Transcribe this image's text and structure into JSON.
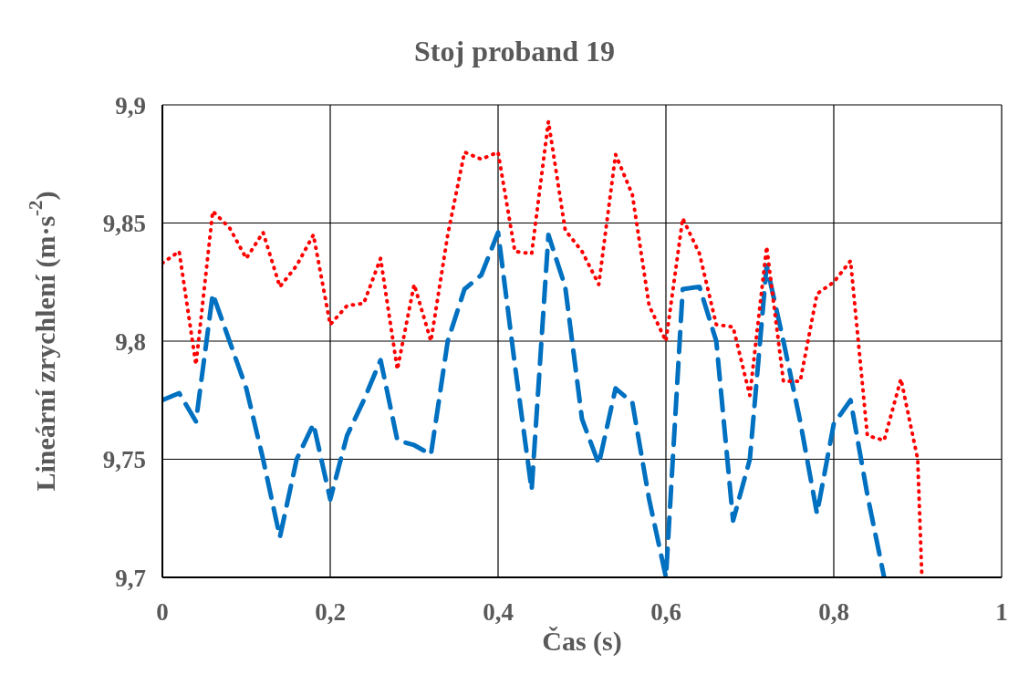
{
  "chart_data": {
    "type": "line",
    "title": "Stoj proband 19",
    "xlabel": "Čas (s)",
    "ylabel": "Lineární zrychlení (m·s$^{-2}$)",
    "xlim": [
      0,
      1
    ],
    "ylim": [
      9.7,
      9.9
    ],
    "xticks": [
      0,
      {
        "value": 0.2,
        "label": "0,2"
      },
      {
        "value": 0.4,
        "label": "0,4"
      },
      {
        "value": 0.6,
        "label": "0,6"
      },
      {
        "value": 0.8,
        "label": "0,8"
      },
      1
    ],
    "yticks": [
      {
        "value": 9.7,
        "label": "9,7"
      },
      {
        "value": 9.75,
        "label": "9,75"
      },
      {
        "value": 9.8,
        "label": "9,8"
      },
      {
        "value": 9.85,
        "label": "9,85"
      },
      {
        "value": 9.9,
        "label": "9,9"
      }
    ],
    "grid": true,
    "legend": false,
    "marker": "none",
    "series": [
      {
        "color": "#0070c0",
        "line_style": "dashed",
        "x": [
          0,
          0.02,
          0.04,
          0.06,
          0.08,
          0.1,
          0.12,
          0.14,
          0.16,
          0.18,
          0.2,
          0.22,
          0.24,
          0.26,
          0.28,
          0.3,
          0.32,
          0.34,
          0.36,
          0.38,
          0.4,
          0.42,
          0.44,
          0.46,
          0.48,
          0.5,
          0.52,
          0.54,
          0.56,
          0.58,
          0.6,
          0.62,
          0.64,
          0.66,
          0.68,
          0.7,
          0.72,
          0.74,
          0.76,
          0.78,
          0.8,
          0.82,
          0.84,
          0.86
        ],
        "values": [
          9.775,
          9.778,
          9.766,
          9.82,
          9.8,
          9.78,
          9.75,
          9.717,
          9.75,
          9.765,
          9.733,
          9.76,
          9.775,
          9.792,
          9.758,
          9.756,
          9.752,
          9.8,
          9.822,
          9.828,
          9.846,
          9.79,
          9.737,
          9.845,
          9.823,
          9.767,
          9.748,
          9.78,
          9.774,
          9.733,
          9.7,
          9.822,
          9.823,
          9.8,
          9.724,
          9.75,
          9.832,
          9.8,
          9.766,
          9.727,
          9.765,
          9.775,
          9.735,
          9.7
        ]
      },
      {
        "color": "#ff0000",
        "line_style": "dotted",
        "x": [
          0,
          0.02,
          0.04,
          0.06,
          0.08,
          0.1,
          0.12,
          0.14,
          0.16,
          0.18,
          0.2,
          0.22,
          0.24,
          0.26,
          0.28,
          0.3,
          0.32,
          0.34,
          0.36,
          0.38,
          0.4,
          0.42,
          0.44,
          0.46,
          0.48,
          0.5,
          0.52,
          0.54,
          0.56,
          0.58,
          0.6,
          0.62,
          0.64,
          0.66,
          0.68,
          0.7,
          0.72,
          0.74,
          0.76,
          0.78,
          0.8,
          0.82,
          0.84,
          0.86,
          0.88,
          0.9,
          0.905
        ],
        "values": [
          9.833,
          9.838,
          9.79,
          9.855,
          9.848,
          9.835,
          9.846,
          9.823,
          9.832,
          9.845,
          9.807,
          9.815,
          9.816,
          9.835,
          9.788,
          9.824,
          9.8,
          9.845,
          9.88,
          9.877,
          9.88,
          9.838,
          9.837,
          9.893,
          9.847,
          9.838,
          9.824,
          9.879,
          9.862,
          9.815,
          9.8,
          9.852,
          9.837,
          9.807,
          9.806,
          9.777,
          9.84,
          9.783,
          9.783,
          9.82,
          9.825,
          9.834,
          9.76,
          9.758,
          9.784,
          9.75,
          9.7
        ]
      }
    ]
  }
}
